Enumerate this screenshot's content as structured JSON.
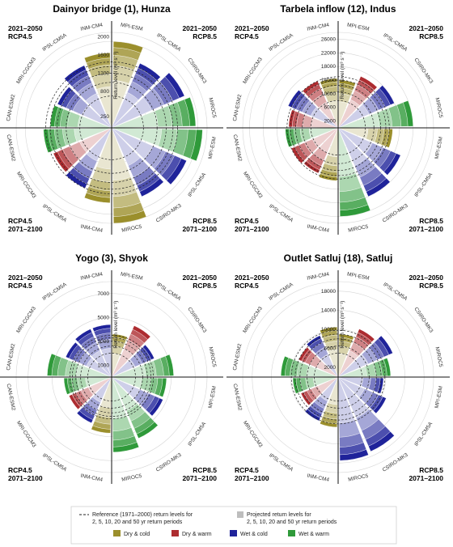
{
  "colors": {
    "dry_cold": "#9b8f2c",
    "dry_warm": "#ad2c30",
    "wet_cold": "#1f239a",
    "wet_warm": "#2f9a3a"
  },
  "chart_data": [
    {
      "type": "radial-bar",
      "title": "Dainyor bridge (1), Hunza",
      "corner_labels": {
        "tl": [
          "2021–2050",
          "RCP4.5"
        ],
        "tr": [
          "2021–2050",
          "RCP8.5"
        ],
        "bl": [
          "RCP4.5",
          "2071–2100"
        ],
        "br": [
          "RCP8.5",
          "2071–2100"
        ]
      },
      "radial_label": "Return level (m³ s⁻¹)",
      "ticks": [
        250,
        800,
        1200,
        1600,
        2000
      ],
      "rmax": 2100,
      "quadrant_models": {
        "tl": [
          "CAN-ESM2",
          "MRI-CGCM3",
          "IPSL-CM5A",
          "INM-CM4"
        ],
        "tr": [
          "MPI-ESM",
          "IPSL-CM5A",
          "CSIRO-MK3",
          "MIROC5"
        ],
        "bl": [
          "INM-CM4",
          "IPSL-CM5A",
          "MRI-CGCM3",
          "CAN-ESM2"
        ],
        "br": [
          "MPI-ESM",
          "IPSL-CM5A",
          "CSIRO-MK3",
          "MIROC5"
        ]
      },
      "sectors": {
        "tr": [
          {
            "cat": "dry_cold",
            "value": 1900
          },
          {
            "cat": "wet_cold",
            "value": 1550
          },
          {
            "cat": "wet_cold",
            "value": 1750
          },
          {
            "cat": "wet_warm",
            "value": 1850
          }
        ],
        "tl": [
          {
            "cat": "wet_warm",
            "value": 1350
          },
          {
            "cat": "wet_cold",
            "value": 1300
          },
          {
            "cat": "wet_cold",
            "value": 1500
          },
          {
            "cat": "dry_cold",
            "value": 1650
          }
        ],
        "br": [
          {
            "cat": "wet_warm",
            "value": 2000
          },
          {
            "cat": "wet_cold",
            "value": 1800
          },
          {
            "cat": "wet_cold",
            "value": 1650
          },
          {
            "cat": "dry_cold",
            "value": 2100
          }
        ],
        "bl": [
          {
            "cat": "dry_cold",
            "value": 1650
          },
          {
            "cat": "wet_cold",
            "value": 1450
          },
          {
            "cat": "dry_warm",
            "value": 1400
          },
          {
            "cat": "wet_warm",
            "value": 1500
          }
        ]
      },
      "reference": [
        700,
        1000,
        1200,
        1350,
        1450
      ]
    },
    {
      "type": "radial-bar",
      "title": "Tarbela inflow (12), Indus",
      "corner_labels": {
        "tl": [
          "2021–2050",
          "RCP4.5"
        ],
        "tr": [
          "2021–2050",
          "RCP8.5"
        ],
        "bl": [
          "RCP4.5",
          "2071–2100"
        ],
        "br": [
          "RCP8.5",
          "2071–2100"
        ]
      },
      "radial_label": "Return level (m³ s⁻¹)",
      "ticks": [
        2000,
        6000,
        10000,
        14000,
        18000,
        22000,
        26000
      ],
      "rmax": 28000,
      "quadrant_models": {
        "tl": [
          "CAN-ESM2",
          "MRI-CGCM3",
          "IPSL-CM5A",
          "INM-CM4"
        ],
        "tr": [
          "MPI-ESM",
          "IPSL-CM5A",
          "CSIRO-MK3",
          "MIROC5"
        ],
        "bl": [
          "INM-CM4",
          "IPSL-CM5A",
          "MRI-CGCM3",
          "CAN-ESM2"
        ],
        "br": [
          "MPI-ESM",
          "IPSL-CM5A",
          "CSIRO-MK3",
          "MIROC5"
        ]
      },
      "sectors": {
        "tr": [
          {
            "cat": "dry_cold",
            "value": 14000
          },
          {
            "cat": "dry_warm",
            "value": 16500
          },
          {
            "cat": "wet_cold",
            "value": 18000
          },
          {
            "cat": "wet_warm",
            "value": 22000
          }
        ],
        "tl": [
          {
            "cat": "dry_warm",
            "value": 14500
          },
          {
            "cat": "wet_cold",
            "value": 16000
          },
          {
            "cat": "dry_warm",
            "value": 15000
          },
          {
            "cat": "dry_cold",
            "value": 14500
          }
        ],
        "br": [
          {
            "cat": "dry_cold",
            "value": 16000
          },
          {
            "cat": "wet_cold",
            "value": 20000
          },
          {
            "cat": "wet_cold",
            "value": 22000
          },
          {
            "cat": "wet_warm",
            "value": 26000
          }
        ],
        "bl": [
          {
            "cat": "dry_cold",
            "value": 15500
          },
          {
            "cat": "dry_warm",
            "value": 14500
          },
          {
            "cat": "dry_warm",
            "value": 15000
          },
          {
            "cat": "wet_warm",
            "value": 15500
          }
        ]
      },
      "reference": [
        8000,
        10500,
        12500,
        14000,
        15000
      ]
    },
    {
      "type": "radial-bar",
      "title": "Yogo (3), Shyok",
      "corner_labels": {
        "tl": [
          "2021–2050",
          "RCP4.5"
        ],
        "tr": [
          "2021–2050",
          "RCP8.5"
        ],
        "bl": [
          "RCP4.5",
          "2071–2100"
        ],
        "br": [
          "RCP8.5",
          "2071–2100"
        ]
      },
      "radial_label": "Return level (m³ s⁻¹)",
      "ticks": [
        1000,
        3000,
        5000,
        7000
      ],
      "rmax": 8000,
      "quadrant_models": {
        "tl": [
          "CAN-ESM2",
          "MRI-CGCM3",
          "IPSL-CM5A",
          "INM-CM4"
        ],
        "tr": [
          "MPI-ESM",
          "IPSL-CM5A",
          "CSIRO-MK3",
          "MIROC5"
        ],
        "bl": [
          "INM-CM4",
          "IPSL-CM5A",
          "MRI-CGCM3",
          "CAN-ESM2"
        ],
        "br": [
          "MPI-ESM",
          "IPSL-CM5A",
          "CSIRO-MK3",
          "MIROC5"
        ]
      },
      "sectors": {
        "tr": [
          {
            "cat": "dry_cold",
            "value": 3600
          },
          {
            "cat": "dry_warm",
            "value": 4700
          },
          {
            "cat": "wet_cold",
            "value": 3900
          },
          {
            "cat": "wet_warm",
            "value": 5200
          }
        ],
        "tl": [
          {
            "cat": "wet_warm",
            "value": 5400
          },
          {
            "cat": "wet_cold",
            "value": 4200
          },
          {
            "cat": "wet_cold",
            "value": 4400
          },
          {
            "cat": "wet_cold",
            "value": 4400
          }
        ],
        "br": [
          {
            "cat": "wet_warm",
            "value": 4600
          },
          {
            "cat": "wet_cold",
            "value": 4700
          },
          {
            "cat": "wet_warm",
            "value": 5600
          },
          {
            "cat": "wet_warm",
            "value": 6300
          }
        ],
        "bl": [
          {
            "cat": "dry_cold",
            "value": 4700
          },
          {
            "cat": "wet_cold",
            "value": 4200
          },
          {
            "cat": "dry_warm",
            "value": 3900
          },
          {
            "cat": "wet_warm",
            "value": 4000
          }
        ]
      },
      "reference": [
        2000,
        2600,
        3000,
        3300,
        3500
      ]
    },
    {
      "type": "radial-bar",
      "title": "Outlet Satluj (18), Satluj",
      "corner_labels": {
        "tl": [
          "2021–2050",
          "RCP4.5"
        ],
        "tr": [
          "2021–2050",
          "RCP8.5"
        ],
        "bl": [
          "RCP4.5",
          "2071–2100"
        ],
        "br": [
          "RCP8.5",
          "2071–2100"
        ]
      },
      "radial_label": "Return level (m³ s⁻¹)",
      "ticks": [
        2000,
        6000,
        10000,
        14000,
        18000
      ],
      "rmax": 20000,
      "quadrant_models": {
        "tl": [
          "CAN-ESM2",
          "MRI-CGCM3",
          "IPSL-CM5A",
          "INM-CM4"
        ],
        "tr": [
          "MPI-ESM",
          "IPSL-CM5A",
          "CSIRO-MK3",
          "MIROC5"
        ],
        "bl": [
          "INM-CM4",
          "IPSL-CM5A",
          "MRI-CGCM3",
          "CAN-ESM2"
        ],
        "br": [
          "MPI-ESM",
          "IPSL-CM5A",
          "CSIRO-MK3",
          "MIROC5"
        ]
      },
      "sectors": {
        "tr": [
          {
            "cat": "dry_cold",
            "value": 9000
          },
          {
            "cat": "dry_warm",
            "value": 11000
          },
          {
            "cat": "wet_cold",
            "value": 12500
          },
          {
            "cat": "wet_warm",
            "value": 11000
          }
        ],
        "tl": [
          {
            "cat": "wet_warm",
            "value": 12000
          },
          {
            "cat": "dry_warm",
            "value": 9000
          },
          {
            "cat": "wet_cold",
            "value": 9500
          },
          {
            "cat": "dry_cold",
            "value": 10500
          }
        ],
        "br": [
          {
            "cat": "wet_cold",
            "value": 9500
          },
          {
            "cat": "wet_cold",
            "value": 11000
          },
          {
            "cat": "wet_cold",
            "value": 17000
          },
          {
            "cat": "wet_cold",
            "value": 17500
          }
        ],
        "bl": [
          {
            "cat": "dry_cold",
            "value": 10500
          },
          {
            "cat": "wet_cold",
            "value": 10000
          },
          {
            "cat": "dry_warm",
            "value": 8500
          },
          {
            "cat": "wet_warm",
            "value": 9500
          }
        ]
      },
      "reference": [
        5000,
        6500,
        8000,
        9000,
        9800
      ]
    }
  ],
  "legend": {
    "reference": "Reference (1971–2000) return levels for",
    "reference_2": "2, 5, 10, 20 and 50 yr return periods",
    "projected": "Projected return levels for",
    "projected_2": "2, 5, 10, 20 and 50 yr return periods",
    "items": [
      {
        "cat": "dry_cold",
        "label": "Dry & cold"
      },
      {
        "cat": "dry_warm",
        "label": "Dry & warm"
      },
      {
        "cat": "wet_cold",
        "label": "Wet & cold"
      },
      {
        "cat": "wet_warm",
        "label": "Wet & warm"
      }
    ]
  }
}
